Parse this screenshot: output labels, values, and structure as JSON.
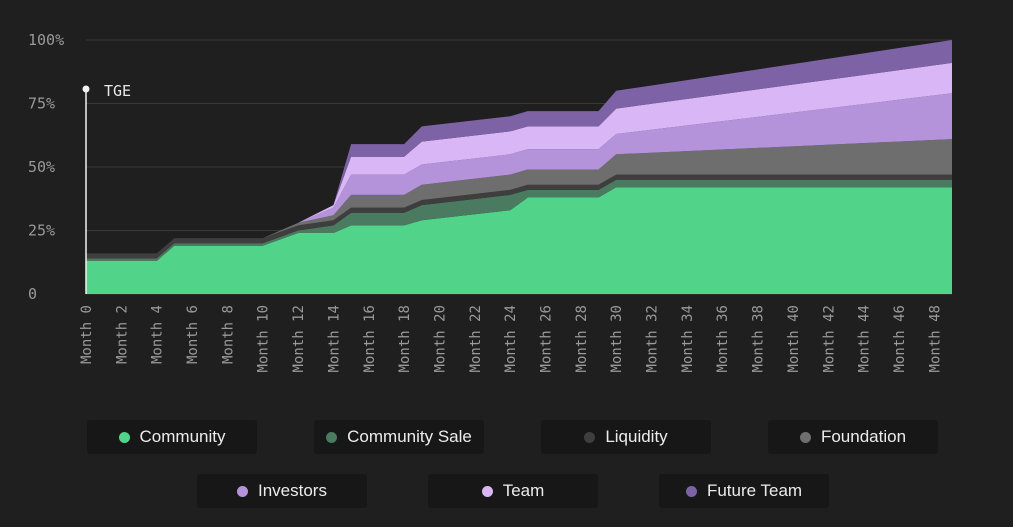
{
  "chart_data": {
    "type": "area",
    "stacked": true,
    "yunit": "%",
    "ylim": [
      0,
      100
    ],
    "yticks": [
      "0",
      "25%",
      "50%",
      "75%",
      "100%"
    ],
    "ytick_values": [
      0,
      25,
      50,
      75,
      100
    ],
    "xmax": 49,
    "xtick_values": [
      0,
      2,
      4,
      6,
      8,
      10,
      12,
      14,
      16,
      18,
      20,
      22,
      24,
      26,
      28,
      30,
      32,
      34,
      36,
      38,
      40,
      42,
      44,
      46,
      48
    ],
    "xticks": [
      "Month 0",
      "Month 2",
      "Month 4",
      "Month 6",
      "Month 8",
      "Month 10",
      "Month 12",
      "Month 14",
      "Month 16",
      "Month 18",
      "Month 20",
      "Month 22",
      "Month 24",
      "Month 26",
      "Month 28",
      "Month 30",
      "Month 32",
      "Month 34",
      "Month 36",
      "Month 38",
      "Month 40",
      "Month 42",
      "Month 44",
      "Month 46",
      "Month 48"
    ],
    "annotation": {
      "label": "TGE",
      "x": 0
    },
    "grid": true,
    "legend_placement": "bottom",
    "x": [
      0,
      4,
      5,
      9,
      10,
      12,
      14,
      15,
      18,
      19,
      24,
      25,
      29,
      30,
      49
    ],
    "series": [
      {
        "name": "Community",
        "color": "#52d38a",
        "values": [
          13,
          13,
          19,
          19,
          19,
          24,
          24,
          27,
          27,
          29,
          33,
          38,
          38,
          42,
          42
        ]
      },
      {
        "name": "Community Sale",
        "color": "#4a7a60",
        "values": [
          1,
          1,
          1,
          1,
          1,
          1,
          3,
          5,
          5,
          6,
          6,
          3,
          3,
          3,
          3
        ]
      },
      {
        "name": "Liquidity",
        "color": "#3e3e3e",
        "values": [
          2,
          2,
          2,
          2,
          2,
          2,
          2,
          2,
          2,
          2,
          2,
          2,
          2,
          2,
          2
        ]
      },
      {
        "name": "Foundation",
        "color": "#6e6e6e",
        "values": [
          0,
          0,
          0,
          0,
          0,
          1,
          2,
          5,
          5,
          6,
          6,
          6,
          6,
          8,
          14
        ]
      },
      {
        "name": "Investors",
        "color": "#b493db",
        "values": [
          0,
          0,
          0,
          0,
          0,
          0,
          3,
          8,
          8,
          8,
          8,
          8,
          8,
          8,
          18
        ]
      },
      {
        "name": "Team",
        "color": "#d9b6f5",
        "values": [
          0,
          0,
          0,
          0,
          0,
          0,
          1,
          7,
          7,
          9,
          9,
          9,
          9,
          10,
          12
        ]
      },
      {
        "name": "Future Team",
        "color": "#7e62a6",
        "values": [
          0,
          0,
          0,
          0,
          0,
          0,
          0,
          5,
          5,
          6,
          6,
          6,
          6,
          7,
          9
        ]
      }
    ]
  }
}
